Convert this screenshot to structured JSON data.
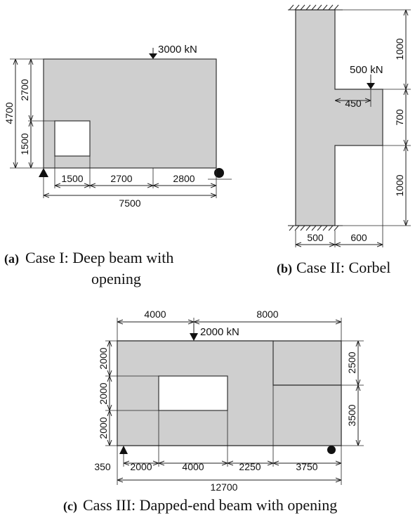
{
  "case1": {
    "load": "3000 kN",
    "dims": {
      "total_height": "4700",
      "upper_height": "2700",
      "opening_height": "1500",
      "seg1": "1500",
      "seg2": "2700",
      "seg3": "2800",
      "total_length": "7500"
    },
    "caption_tag": "(a)",
    "caption_line1": "Case I: Deep beam with",
    "caption_line2": "opening"
  },
  "case2": {
    "load": "500 kN",
    "dims": {
      "upper": "1000",
      "corbel_depth": "700",
      "lower": "1000",
      "load_offset": "450",
      "column_width": "500",
      "corbel_width": "600"
    },
    "caption_tag": "(b)",
    "caption": "Case II: Corbel"
  },
  "case3": {
    "load": "2000 kN",
    "dims": {
      "top_left": "4000",
      "top_right": "8000",
      "left_h1": "2000",
      "left_h2": "2000",
      "left_h3": "2000",
      "right_upper": "2500",
      "right_lower": "3500",
      "support_offset": "350",
      "seg1": "2000",
      "seg2": "4000",
      "seg3": "2250",
      "seg4": "3750",
      "total_length": "12700"
    },
    "caption_tag": "(c)",
    "caption": "Cass III: Dapped-end beam with opening"
  }
}
